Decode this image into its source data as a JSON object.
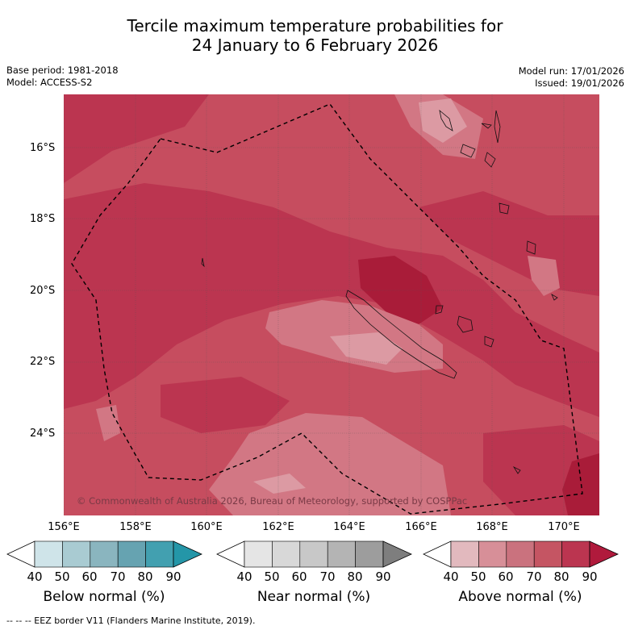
{
  "title": {
    "line1": "Tercile maximum temperature probabilities for",
    "line2": "24 January to 6 February 2026"
  },
  "meta": {
    "base_period": "Base period: 1981-2018",
    "model": "Model: ACCESS-S2",
    "model_run": "Model run: 17/01/2026",
    "issued": "Issued: 19/01/2026"
  },
  "map": {
    "lat_labels": [
      "16°S",
      "18°S",
      "20°S",
      "22°S",
      "24°S"
    ],
    "lon_labels": [
      "156°E",
      "158°E",
      "160°E",
      "162°E",
      "164°E",
      "166°E",
      "168°E",
      "170°E"
    ],
    "copyright": "© Commonwealth of Australia 2026, Bureau of Meteorology, supported by COSPPac",
    "colors": {
      "above_70_80": "#c64d5f",
      "above_80_90": "#bb3550",
      "above_90": "#a91c39",
      "above_60_70": "#d27784",
      "above_50_60": "#dc9aa3",
      "eez": "#000000"
    }
  },
  "colorbars": {
    "tick_labels": [
      "40",
      "50",
      "60",
      "70",
      "80",
      "90"
    ],
    "below": {
      "title": "Below normal (%)",
      "colors": [
        "#ffffff",
        "#cfe4e9",
        "#a9cbd2",
        "#8ab5bf",
        "#66a3b1",
        "#42a0b0",
        "#2496a8"
      ]
    },
    "near": {
      "title": "Near normal (%)",
      "colors": [
        "#ffffff",
        "#e5e5e5",
        "#d8d8d8",
        "#c8c8c8",
        "#b4b4b4",
        "#9d9d9d",
        "#7e7e7e"
      ]
    },
    "above": {
      "title": "Above normal (%)",
      "colors": [
        "#ffffff",
        "#e2b9be",
        "#d78f98",
        "#ca727e",
        "#c55563",
        "#bb3550",
        "#b01a3c"
      ]
    }
  },
  "footnote": "--  --  -- EEZ border V11 (Flanders Marine Institute, 2019)."
}
